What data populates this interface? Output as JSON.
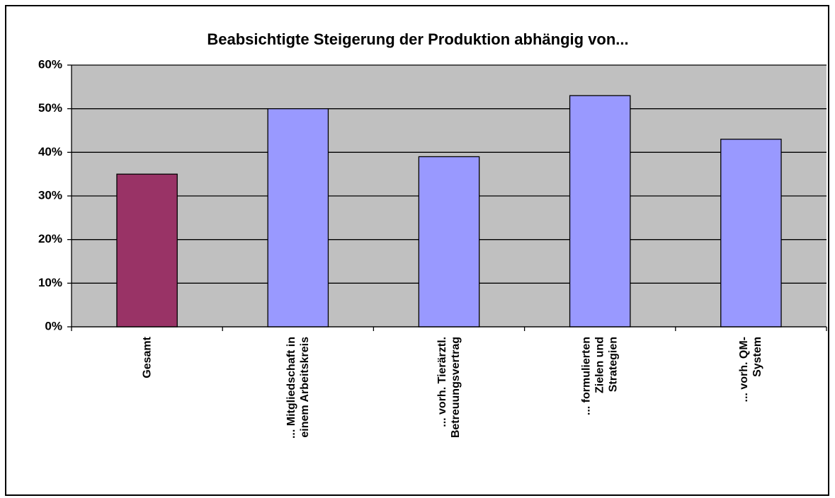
{
  "chart_data": {
    "type": "bar",
    "title": "Beabsichtigte Steigerung der Produktion abhängig von...",
    "categories": [
      "Gesamt",
      "... Mitgliedschaft in\neinem Arbeitskreis",
      "... vorh. Tierärztl.\nBetreuungsvertrag",
      "... formulierten\nZielen und\nStrategien",
      "... vorh. QM-\nSystem"
    ],
    "values": [
      35,
      50,
      39,
      53,
      43
    ],
    "colors": [
      "#993366",
      "#9999ff",
      "#9999ff",
      "#9999ff",
      "#9999ff"
    ],
    "ylim": [
      0,
      60
    ],
    "yticks": [
      {
        "value": 0,
        "label": "0%"
      },
      {
        "value": 10,
        "label": "10%"
      },
      {
        "value": 20,
        "label": "20%"
      },
      {
        "value": 30,
        "label": "30%"
      },
      {
        "value": 40,
        "label": "40%"
      },
      {
        "value": 50,
        "label": "50%"
      },
      {
        "value": 60,
        "label": "60%"
      }
    ],
    "grid": true
  }
}
